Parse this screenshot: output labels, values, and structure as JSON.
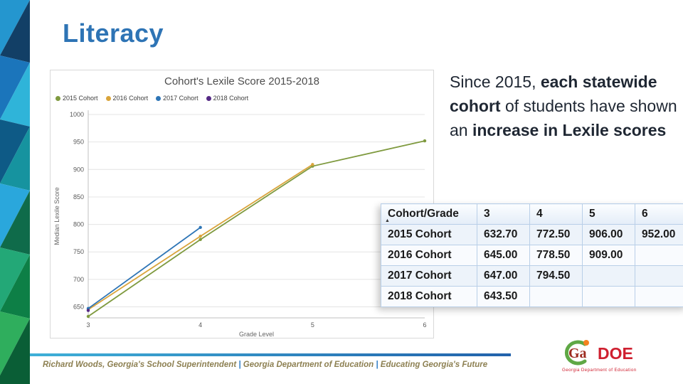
{
  "slide": {
    "title": "Literacy",
    "callout": {
      "segments": [
        {
          "text": "Since 2015, ",
          "bold": false
        },
        {
          "text": "each statewide cohort",
          "bold": true
        },
        {
          "text": " of students have shown an ",
          "bold": false
        },
        {
          "text": "increase in Lexile scores",
          "bold": true
        }
      ]
    },
    "footer": {
      "segments": [
        {
          "text": "Richard Woods, Georgia's School Superintendent ",
          "style": "plain"
        },
        {
          "text": "| ",
          "style": "pipe"
        },
        {
          "text": "Georgia Department of Education ",
          "style": "bold"
        },
        {
          "text": "| ",
          "style": "pipe"
        },
        {
          "text": "Educating Georgia's Future",
          "style": "plain"
        }
      ]
    },
    "logo": {
      "ga": "Ga",
      "doe": "DOE",
      "caption": "Georgia Department of Education"
    }
  },
  "chart_data": {
    "type": "line",
    "title": "Cohort's Lexile Score 2015-2018",
    "xlabel": "Grade Level",
    "ylabel": "Median Lexile Score",
    "categories": [
      "3",
      "4",
      "5",
      "6"
    ],
    "ylim": [
      630,
      1000
    ],
    "yticks": [
      650,
      700,
      750,
      800,
      850,
      900,
      950,
      1000
    ],
    "grid": true,
    "legend_position": "top-left",
    "series": [
      {
        "name": "2015 Cohort",
        "color": "#7f9a3f",
        "values": [
          632.7,
          772.5,
          906.0,
          952.0
        ]
      },
      {
        "name": "2016 Cohort",
        "color": "#d9a43b",
        "values": [
          645.0,
          778.5,
          909.0,
          null
        ]
      },
      {
        "name": "2017 Cohort",
        "color": "#2e75b6",
        "values": [
          647.0,
          794.5,
          null,
          null
        ]
      },
      {
        "name": "2018 Cohort",
        "color": "#552a85",
        "values": [
          643.5,
          null,
          null,
          null
        ]
      }
    ]
  },
  "table": {
    "header": [
      "Cohort/Grade",
      "3",
      "4",
      "5",
      "6"
    ],
    "sort_indicator": "▲",
    "rows": [
      {
        "label": "2015 Cohort",
        "values": [
          "632.70",
          "772.50",
          "906.00",
          "952.00"
        ]
      },
      {
        "label": "2016 Cohort",
        "values": [
          "645.00",
          "778.50",
          "909.00",
          ""
        ]
      },
      {
        "label": "2017 Cohort",
        "values": [
          "647.00",
          "794.50",
          "",
          ""
        ]
      },
      {
        "label": "2018 Cohort",
        "values": [
          "643.50",
          "",
          "",
          ""
        ]
      }
    ]
  }
}
